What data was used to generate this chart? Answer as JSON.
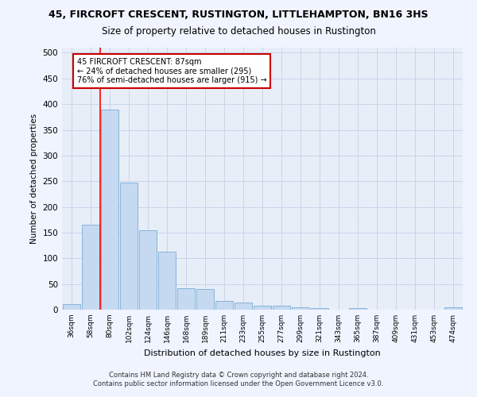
{
  "title": "45, FIRCROFT CRESCENT, RUSTINGTON, LITTLEHAMPTON, BN16 3HS",
  "subtitle": "Size of property relative to detached houses in Rustington",
  "xlabel": "Distribution of detached houses by size in Rustington",
  "ylabel": "Number of detached properties",
  "categories": [
    "36sqm",
    "58sqm",
    "80sqm",
    "102sqm",
    "124sqm",
    "146sqm",
    "168sqm",
    "189sqm",
    "211sqm",
    "233sqm",
    "255sqm",
    "277sqm",
    "299sqm",
    "321sqm",
    "343sqm",
    "365sqm",
    "387sqm",
    "409sqm",
    "431sqm",
    "453sqm",
    "474sqm"
  ],
  "values": [
    11,
    165,
    390,
    248,
    155,
    113,
    42,
    40,
    17,
    14,
    8,
    7,
    5,
    3,
    0,
    3,
    0,
    0,
    0,
    0,
    5
  ],
  "bar_color": "#c5d9f1",
  "bar_edge_color": "#7aadd4",
  "annotation_line1": "45 FIRCROFT CRESCENT: 87sqm",
  "annotation_line2": "← 24% of detached houses are smaller (295)",
  "annotation_line3": "76% of semi-detached houses are larger (915) →",
  "annotation_box_color": "#cc0000",
  "annotation_box_fill": "#ffffff",
  "property_line_x": 1.5,
  "footer_line1": "Contains HM Land Registry data © Crown copyright and database right 2024.",
  "footer_line2": "Contains public sector information licensed under the Open Government Licence v3.0.",
  "ylim": [
    0,
    510
  ],
  "yticks": [
    0,
    50,
    100,
    150,
    200,
    250,
    300,
    350,
    400,
    450,
    500
  ],
  "bg_color": "#f0f4ff",
  "plot_bg_color": "#e8eef8",
  "grid_color": "#c8d4e8",
  "title_fontsize": 9,
  "subtitle_fontsize": 8.5
}
